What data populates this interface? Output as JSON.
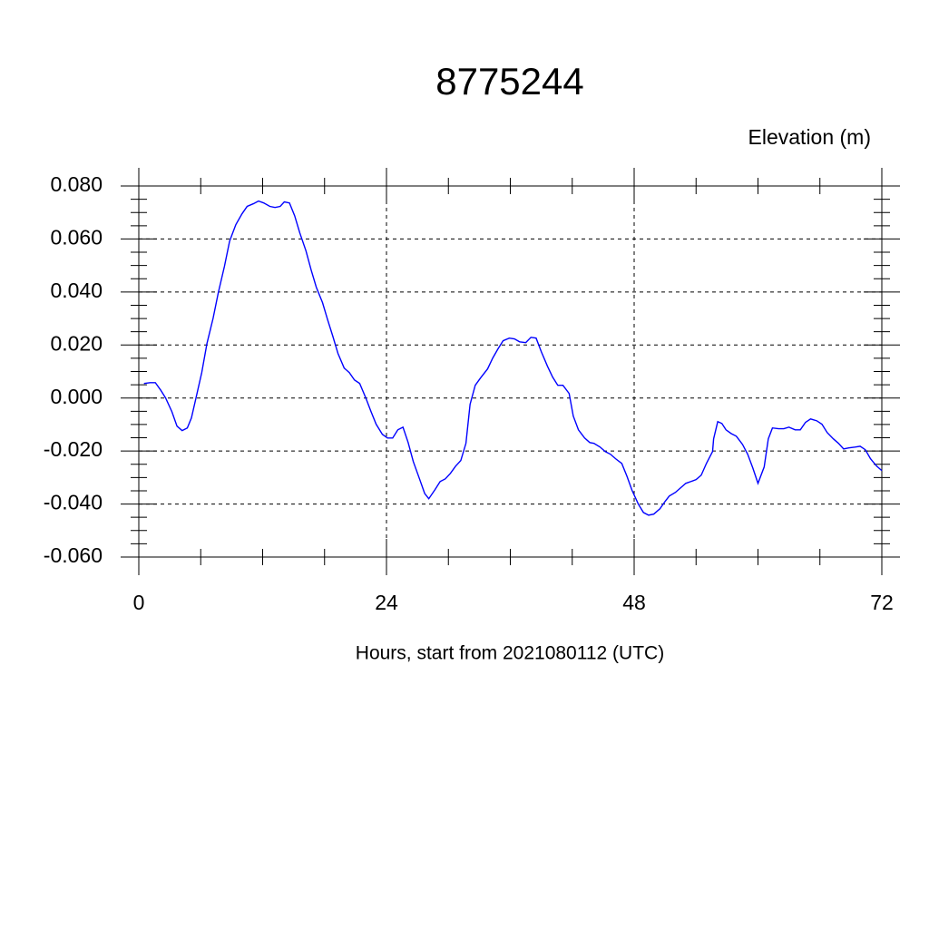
{
  "chart_data": {
    "type": "line",
    "title": "8775244",
    "ylabel": "Elevation (m)",
    "xlabel": "Hours, start from 2021080112 (UTC)",
    "xlim": [
      0,
      72
    ],
    "xticks": [
      0,
      24,
      48,
      72
    ],
    "xminorticks": [
      6,
      12,
      18,
      30,
      36,
      42,
      54,
      60,
      66
    ],
    "ylim": [
      -0.06,
      0.08
    ],
    "yticks": [
      {
        "value": -0.06,
        "label": "-0.060"
      },
      {
        "value": -0.04,
        "label": "-0.040"
      },
      {
        "value": -0.02,
        "label": "-0.020"
      },
      {
        "value": 0,
        "label": "0.000"
      },
      {
        "value": 0.02,
        "label": "0.020"
      },
      {
        "value": 0.04,
        "label": "0.040"
      },
      {
        "value": 0.06,
        "label": "0.060"
      },
      {
        "value": 0.08,
        "label": "0.080"
      }
    ],
    "yminorticks": [
      -0.055,
      -0.05,
      -0.045,
      -0.035,
      -0.03,
      -0.025,
      -0.015,
      -0.01,
      -0.005,
      0.005,
      0.01,
      0.015,
      0.025,
      0.03,
      0.035,
      0.045,
      0.05,
      0.055,
      0.065,
      0.07,
      0.075
    ],
    "grid": true,
    "series": [
      {
        "name": "Elevation",
        "color": "#0000ff",
        "x": [
          0.5,
          1.1,
          1.6,
          2.1,
          2.6,
          3.2,
          3.7,
          4.2,
          4.7,
          5.1,
          5.5,
          6.1,
          6.6,
          7.2,
          7.7,
          8.3,
          8.8,
          9.4,
          10.0,
          10.5,
          11.1,
          11.6,
          12.1,
          12.7,
          13.2,
          13.7,
          14.1,
          14.6,
          15.1,
          15.6,
          16.2,
          16.7,
          17.2,
          17.8,
          18.3,
          18.8,
          19.3,
          19.9,
          20.4,
          20.9,
          21.4,
          22.0,
          22.5,
          23.0,
          23.6,
          24.1,
          24.6,
          25.1,
          25.6,
          26.1,
          26.6,
          27.2,
          27.7,
          28.1,
          28.7,
          29.2,
          29.7,
          30.2,
          30.7,
          31.2,
          31.7,
          32.1,
          32.6,
          33.1,
          33.8,
          34.3,
          34.8,
          35.3,
          35.9,
          36.4,
          36.9,
          37.5,
          38.0,
          38.5,
          39.0,
          39.6,
          40.1,
          40.6,
          41.1,
          41.7,
          42.1,
          42.6,
          43.2,
          43.7,
          44.1,
          44.7,
          45.2,
          45.7,
          46.2,
          46.8,
          47.3,
          47.8,
          48.4,
          48.9,
          49.4,
          49.9,
          50.5,
          51.0,
          51.4,
          52.0,
          52.5,
          53.0,
          53.5,
          54.0,
          54.5,
          55.0,
          55.6,
          55.7,
          56.1,
          56.5,
          56.9,
          57.4,
          57.9,
          58.5,
          59.0,
          59.5,
          60.0,
          60.6,
          61.0,
          61.4,
          62.0,
          62.5,
          63.0,
          63.6,
          64.1,
          64.6,
          65.1,
          65.7,
          66.2,
          66.7,
          67.3,
          67.8,
          68.3,
          68.8,
          69.4,
          69.9,
          70.4,
          70.9,
          71.5,
          72.0
        ],
        "values": [
          0.0055,
          0.0058,
          0.0058,
          0.0031,
          0,
          -0.0051,
          -0.0106,
          -0.0123,
          -0.0113,
          -0.0075,
          -0.0007,
          0.0096,
          0.0205,
          0.0301,
          0.0397,
          0.0497,
          0.0592,
          0.0654,
          0.0695,
          0.0723,
          0.0733,
          0.0743,
          0.0736,
          0.0723,
          0.0719,
          0.0723,
          0.074,
          0.0736,
          0.0688,
          0.0623,
          0.0555,
          0.0483,
          0.0418,
          0.036,
          0.0295,
          0.0233,
          0.0168,
          0.0113,
          0.0096,
          0.0068,
          0.0055,
          0,
          -0.0051,
          -0.0099,
          -0.0137,
          -0.0151,
          -0.0151,
          -0.012,
          -0.011,
          -0.0168,
          -0.024,
          -0.0305,
          -0.036,
          -0.038,
          -0.0346,
          -0.0315,
          -0.0305,
          -0.0284,
          -0.0257,
          -0.0236,
          -0.0171,
          -0.0024,
          0.0048,
          0.0075,
          0.011,
          0.0151,
          0.0185,
          0.0216,
          0.0226,
          0.0223,
          0.0212,
          0.0209,
          0.0229,
          0.0226,
          0.0175,
          0.012,
          0.0079,
          0.0048,
          0.0048,
          0.0017,
          -0.0068,
          -0.012,
          -0.0151,
          -0.0168,
          -0.0171,
          -0.0185,
          -0.0202,
          -0.0212,
          -0.0229,
          -0.0247,
          -0.0295,
          -0.0349,
          -0.04,
          -0.0432,
          -0.0442,
          -0.0438,
          -0.0418,
          -0.039,
          -0.037,
          -0.0356,
          -0.0339,
          -0.0322,
          -0.0315,
          -0.0308,
          -0.0291,
          -0.0247,
          -0.0202,
          -0.0154,
          -0.0089,
          -0.0096,
          -0.012,
          -0.0134,
          -0.0144,
          -0.0175,
          -0.0212,
          -0.0264,
          -0.0322,
          -0.026,
          -0.0154,
          -0.0113,
          -0.0116,
          -0.0116,
          -0.011,
          -0.012,
          -0.012,
          -0.0092,
          -0.0079,
          -0.0086,
          -0.0099,
          -0.013,
          -0.0154,
          -0.0171,
          -0.0192,
          -0.0188,
          -0.0185,
          -0.0182,
          -0.0195,
          -0.0229,
          -0.0257,
          -0.0274
        ]
      }
    ]
  }
}
